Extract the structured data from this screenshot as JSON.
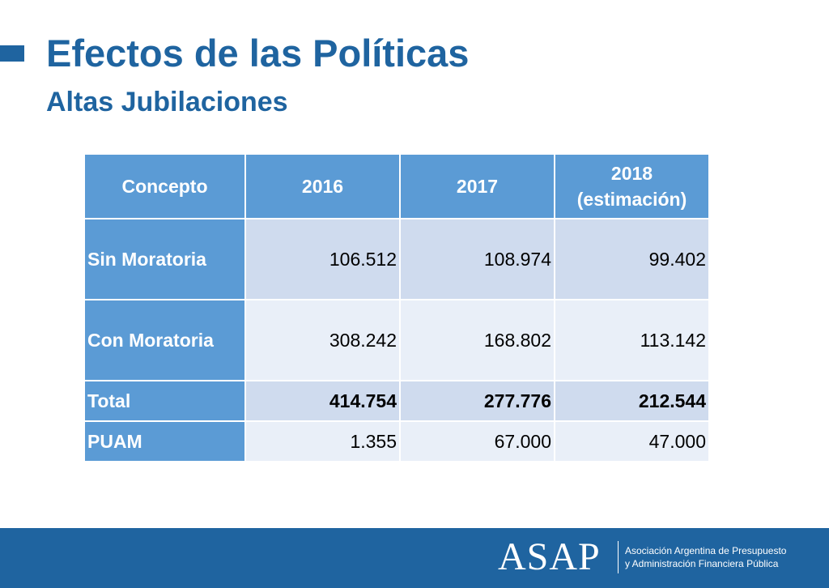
{
  "header": {
    "title": "Efectos de las Políticas",
    "subtitle": "Altas Jubilaciones"
  },
  "table": {
    "columns": {
      "concepto": "Concepto",
      "y2016": "2016",
      "y2017": "2017",
      "y2018_line1": "2018",
      "y2018_line2": "(estimación)"
    },
    "rows": [
      {
        "label": "Sin Moratoria",
        "v2016": "106.512",
        "v2017": "108.974",
        "v2018": "99.402"
      },
      {
        "label": "Con Moratoria",
        "v2016": "308.242",
        "v2017": "168.802",
        "v2018": "113.142"
      },
      {
        "label": "Total",
        "v2016": "414.754",
        "v2017": "277.776",
        "v2018": "212.544"
      },
      {
        "label": "PUAM",
        "v2016": "1.355",
        "v2017": "67.000",
        "v2018": "47.000"
      }
    ]
  },
  "footer": {
    "logo": "ASAP",
    "org_line1": "Asociación Argentina de Presupuesto",
    "org_line2": "y Administración Financiera Pública"
  },
  "colors": {
    "brand_blue": "#1f64a0",
    "header_cell": "#5b9bd5",
    "band_dark": "#cfdbee",
    "band_light": "#e9eff8"
  }
}
